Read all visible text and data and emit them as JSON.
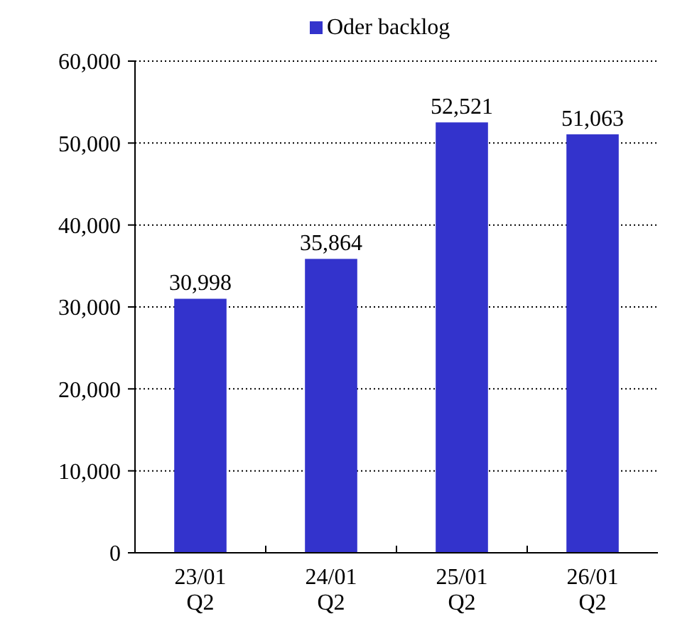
{
  "chart_data": {
    "type": "bar",
    "categories": [
      "23/01\nQ2",
      "24/01\nQ2",
      "25/01\nQ2",
      "26/01\nQ2"
    ],
    "series": [
      {
        "name": "Oder backlog",
        "color": "#3333cc",
        "values": [
          30998,
          35864,
          52521,
          51063
        ],
        "value_labels": [
          "30,998",
          "35,864",
          "52,521",
          "51,063"
        ]
      }
    ],
    "ylim": [
      0,
      60000
    ],
    "yticks": [
      {
        "value": 0,
        "label": "0"
      },
      {
        "value": 10000,
        "label": "10,000"
      },
      {
        "value": 20000,
        "label": "20,000"
      },
      {
        "value": 30000,
        "label": "30,000"
      },
      {
        "value": 40000,
        "label": "40,000"
      },
      {
        "value": 50000,
        "label": "50,000"
      },
      {
        "value": 60000,
        "label": "60,000"
      }
    ],
    "grid": "y",
    "legend": "top"
  }
}
